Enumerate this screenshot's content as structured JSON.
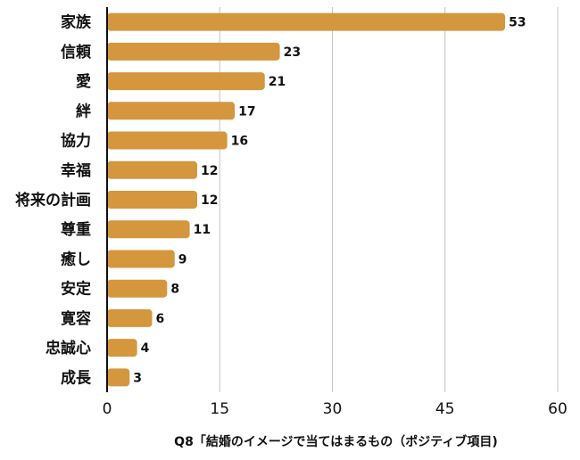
{
  "chart_data": {
    "type": "bar",
    "orientation": "horizontal",
    "categories": [
      "家族",
      "信頼",
      "愛",
      "絆",
      "協力",
      "幸福",
      "将来の計画",
      "尊重",
      "癒し",
      "安定",
      "寛容",
      "忠誠心",
      "成長"
    ],
    "values": [
      53,
      23,
      21,
      17,
      16,
      12,
      12,
      11,
      9,
      8,
      6,
      4,
      3
    ],
    "title": "",
    "xlabel": "Q8「結婚のイメージで当てはまるもの（ポジティブ項目)",
    "ylabel": "",
    "xlim": [
      0,
      60
    ],
    "xticks": [
      0,
      15,
      30,
      45,
      60
    ],
    "grid": "vertical",
    "legend": "none",
    "data_labels": true,
    "bar_color": "#D4973E"
  }
}
